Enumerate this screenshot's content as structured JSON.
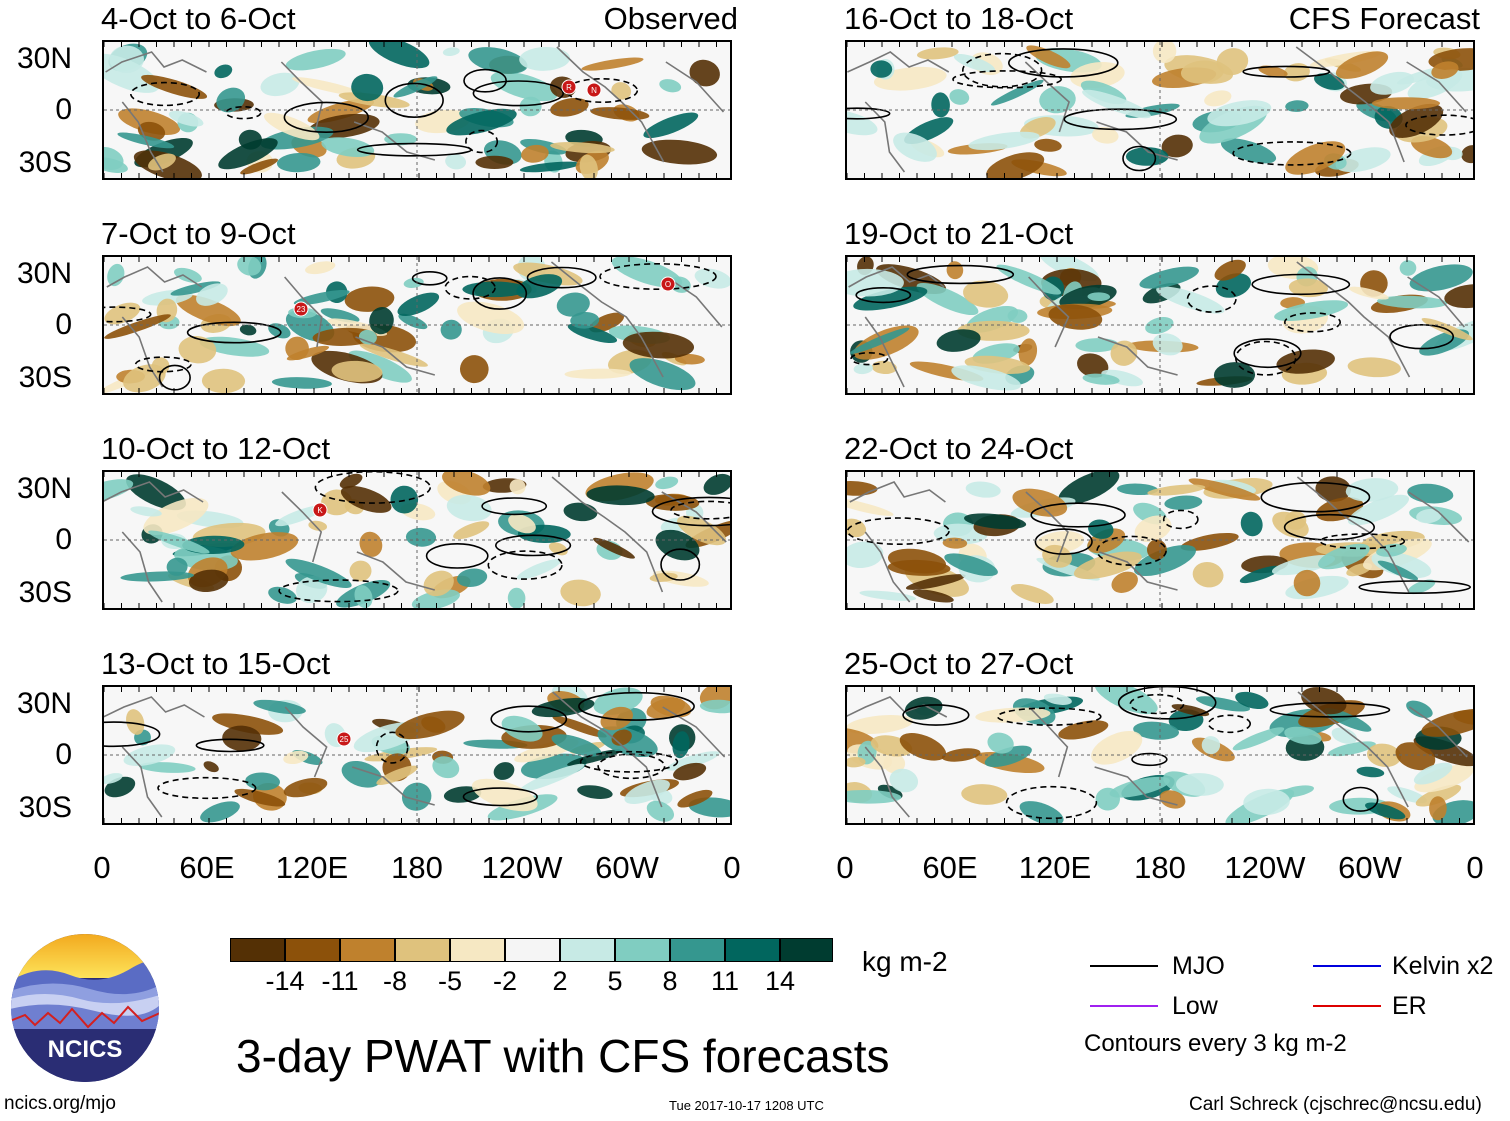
{
  "chart_data": {
    "type": "heatmap",
    "title": "3-day PWAT with CFS forecasts",
    "units": "kg m-2",
    "xticks": [
      "0",
      "60E",
      "120E",
      "180",
      "120W",
      "60W",
      "0"
    ],
    "yticks": [
      "30N",
      "0",
      "30S"
    ],
    "left_column_tag": "Observed",
    "right_column_tag": "CFS Forecast",
    "panels_observed": [
      {
        "period": "4-Oct to 6-Oct",
        "storm_markers": [
          "R",
          "N"
        ]
      },
      {
        "period": "7-Oct to 9-Oct",
        "storm_markers": [
          "23",
          "O"
        ]
      },
      {
        "period": "10-Oct to 12-Oct",
        "storm_markers": [
          "K"
        ]
      },
      {
        "period": "13-Oct to 15-Oct",
        "storm_markers": [
          "25"
        ]
      }
    ],
    "panels_forecast": [
      {
        "period": "16-Oct to 18-Oct"
      },
      {
        "period": "19-Oct to 21-Oct"
      },
      {
        "period": "22-Oct to 24-Oct"
      },
      {
        "period": "25-Oct to 27-Oct"
      }
    ],
    "colorbar": {
      "labels": [
        "-14",
        "-11",
        "-8",
        "-5",
        "-2",
        "2",
        "5",
        "8",
        "11",
        "14"
      ],
      "colors": [
        "#543005",
        "#8c510a",
        "#bf812d",
        "#dfc27d",
        "#f6e8c3",
        "#f5f5f5",
        "#c7eae5",
        "#80cdc1",
        "#35978f",
        "#01665e",
        "#003c30"
      ]
    },
    "legend": [
      {
        "label": "MJO",
        "color": "#000000"
      },
      {
        "label": "Kelvin x2",
        "color": "#0000dd"
      },
      {
        "label": "Low",
        "color": "#a020f0"
      },
      {
        "label": "ER",
        "color": "#dd0000"
      }
    ],
    "contour_note": "Contours every 3 kg m-2"
  },
  "footer": {
    "site": "ncics.org/mjo",
    "timestamp": "Tue 2017-10-17 1208 UTC",
    "author": "Carl Schreck (cjschrec@ncsu.edu)",
    "logo_text": "NCICS"
  }
}
